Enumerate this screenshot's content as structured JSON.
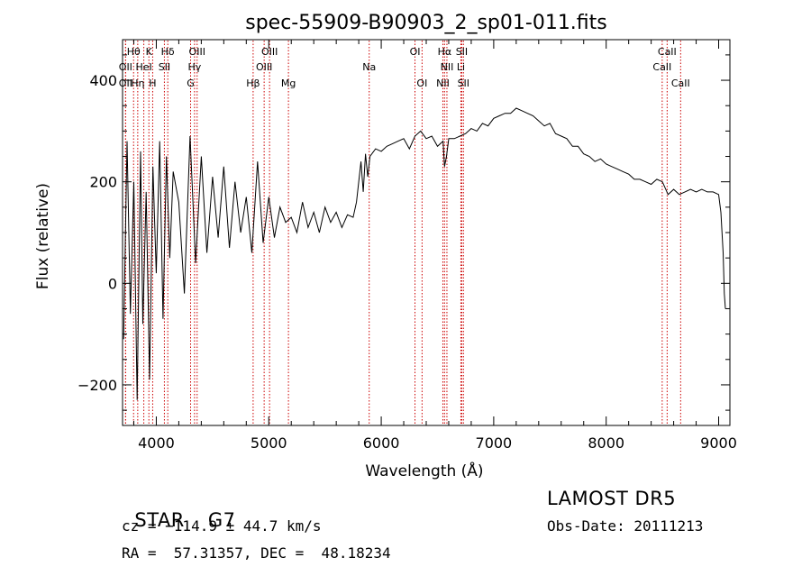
{
  "chart_data": {
    "type": "line",
    "title": "spec-55909-B90903_2_sp01-011.fits",
    "xlabel": "Wavelength (Å)",
    "ylabel": "Flux (relative)",
    "xlim": [
      3700,
      9100
    ],
    "ylim": [
      -280,
      480
    ],
    "xticks": [
      4000,
      5000,
      6000,
      7000,
      8000,
      9000
    ],
    "yticks": [
      -200,
      0,
      200,
      400
    ],
    "xtick_labels": [
      "4000",
      "5000",
      "6000",
      "7000",
      "8000",
      "9000"
    ],
    "ytick_labels": [
      "−200",
      "0",
      "200",
      "400"
    ],
    "grid": false,
    "line_color": "#000000",
    "marker_color": "#cc0000",
    "series": [
      {
        "x": [
          3710,
          3740,
          3770,
          3800,
          3830,
          3860,
          3880,
          3910,
          3940,
          3970,
          4000,
          4030,
          4060,
          4090,
          4120,
          4150,
          4200,
          4250,
          4300,
          4350,
          4400,
          4450,
          4500,
          4550,
          4600,
          4650,
          4700,
          4750,
          4800,
          4850,
          4900,
          4950,
          5000,
          5050,
          5100,
          5150,
          5200,
          5250,
          5300,
          5350,
          5400,
          5450,
          5500,
          5550,
          5600,
          5650,
          5700,
          5750,
          5780,
          5800,
          5820,
          5840,
          5860,
          5880,
          5900,
          5950,
          6000,
          6050,
          6100,
          6150,
          6200,
          6250,
          6300,
          6350,
          6400,
          6450,
          6500,
          6550,
          6563,
          6580,
          6600,
          6650,
          6700,
          6750,
          6800,
          6850,
          6900,
          6950,
          7000,
          7050,
          7100,
          7150,
          7200,
          7250,
          7300,
          7350,
          7400,
          7450,
          7500,
          7550,
          7600,
          7650,
          7700,
          7750,
          7800,
          7850,
          7900,
          7950,
          8000,
          8050,
          8100,
          8150,
          8200,
          8250,
          8300,
          8350,
          8400,
          8450,
          8500,
          8550,
          8600,
          8650,
          8700,
          8750,
          8800,
          8850,
          8900,
          8950,
          9000,
          9020,
          9040,
          9050,
          9060
        ],
        "y": [
          -110,
          280,
          -60,
          200,
          -230,
          260,
          -80,
          180,
          -190,
          230,
          20,
          280,
          -70,
          250,
          50,
          220,
          160,
          -20,
          290,
          40,
          250,
          60,
          210,
          90,
          230,
          70,
          200,
          100,
          170,
          60,
          240,
          80,
          170,
          90,
          150,
          120,
          130,
          100,
          160,
          110,
          140,
          100,
          150,
          120,
          140,
          110,
          135,
          130,
          160,
          200,
          240,
          180,
          255,
          210,
          250,
          265,
          260,
          270,
          275,
          280,
          285,
          265,
          290,
          300,
          285,
          290,
          270,
          280,
          230,
          250,
          285,
          285,
          290,
          295,
          305,
          300,
          315,
          310,
          325,
          330,
          335,
          335,
          345,
          340,
          335,
          330,
          320,
          310,
          315,
          295,
          290,
          285,
          270,
          270,
          255,
          250,
          240,
          245,
          235,
          230,
          225,
          220,
          215,
          205,
          205,
          200,
          195,
          205,
          200,
          175,
          185,
          175,
          180,
          185,
          180,
          185,
          180,
          180,
          175,
          140,
          60,
          -20,
          -50
        ]
      }
    ],
    "line_markers": [
      {
        "label": "Hθ",
        "x": 3798,
        "row": 0
      },
      {
        "label": "K",
        "x": 3934,
        "row": 0
      },
      {
        "label": "Hδ",
        "x": 4102,
        "row": 0
      },
      {
        "label": "OIII",
        "x": 4363,
        "row": 0
      },
      {
        "label": "OIII",
        "x": 5007,
        "row": 0
      },
      {
        "label": "OI",
        "x": 6300,
        "row": 0
      },
      {
        "label": "Hα",
        "x": 6563,
        "row": 0
      },
      {
        "label": "SII",
        "x": 6716,
        "row": 0
      },
      {
        "label": "CaII",
        "x": 8542,
        "row": 0
      },
      {
        "label": "OII",
        "x": 3727,
        "row": 1
      },
      {
        "label": "HeI",
        "x": 3889,
        "row": 1
      },
      {
        "label": "SII",
        "x": 4072,
        "row": 1
      },
      {
        "label": "Hγ",
        "x": 4340,
        "row": 1
      },
      {
        "label": "OIII",
        "x": 4959,
        "row": 1
      },
      {
        "label": "Na",
        "x": 5893,
        "row": 1
      },
      {
        "label": "NII",
        "x": 6584,
        "row": 1
      },
      {
        "label": "Li",
        "x": 6708,
        "row": 1
      },
      {
        "label": "CaII",
        "x": 8498,
        "row": 1
      },
      {
        "label": "OII",
        "x": 3727,
        "row": 2
      },
      {
        "label": "Hη",
        "x": 3835,
        "row": 2
      },
      {
        "label": "H",
        "x": 3968,
        "row": 2
      },
      {
        "label": "G",
        "x": 4305,
        "row": 2
      },
      {
        "label": "Hβ",
        "x": 4861,
        "row": 2
      },
      {
        "label": "Mg",
        "x": 5175,
        "row": 2
      },
      {
        "label": "OI",
        "x": 6363,
        "row": 2
      },
      {
        "label": "NII",
        "x": 6548,
        "row": 2
      },
      {
        "label": "SII",
        "x": 6731,
        "row": 2
      },
      {
        "label": "CaII",
        "x": 8662,
        "row": 2
      }
    ]
  },
  "info": {
    "class_label": "STAR",
    "subclass": "G7",
    "survey": "LAMOST DR5",
    "redshift_text": "cz = −114.9 ± 44.7 km/s",
    "obs_date": "Obs-Date: 20111213",
    "coords": "RA =  57.31357, DEC =  48.18234"
  }
}
